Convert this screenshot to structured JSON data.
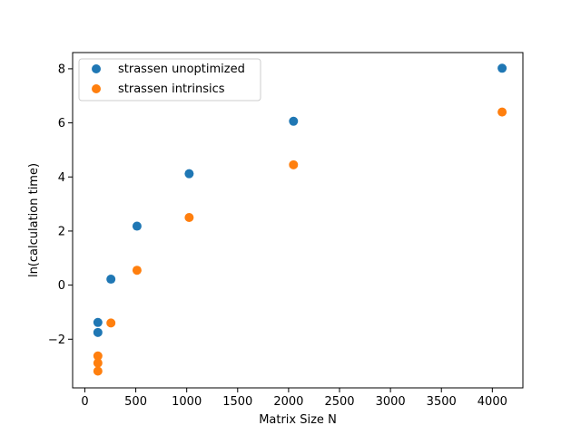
{
  "chart_data": {
    "type": "scatter",
    "title": "",
    "xlabel": "Matrix Size N",
    "ylabel": "ln(calculation time)",
    "xlim": [
      -120,
      4300
    ],
    "ylim": [
      -3.8,
      8.6
    ],
    "x_ticks": [
      0,
      500,
      1000,
      1500,
      2000,
      2500,
      3000,
      3500,
      4000
    ],
    "y_ticks": [
      -2,
      0,
      2,
      4,
      6,
      8
    ],
    "x_tick_labels": [
      "0",
      "500",
      "1000",
      "1500",
      "2000",
      "2500",
      "3000",
      "3500",
      "4000"
    ],
    "y_tick_labels": [
      "−2",
      "0",
      "2",
      "4",
      "6",
      "8"
    ],
    "grid": false,
    "legend_position": "upper-left",
    "series": [
      {
        "name": "strassen unoptimized",
        "color": "#1f77b4",
        "points": [
          {
            "x": 128,
            "y": -1.75
          },
          {
            "x": 128,
            "y": -1.38
          },
          {
            "x": 256,
            "y": 0.22
          },
          {
            "x": 512,
            "y": 2.18
          },
          {
            "x": 1024,
            "y": 4.12
          },
          {
            "x": 2048,
            "y": 6.06
          },
          {
            "x": 4096,
            "y": 8.02
          }
        ]
      },
      {
        "name": "strassen intrinsics",
        "color": "#ff7f0e",
        "points": [
          {
            "x": 128,
            "y": -3.18
          },
          {
            "x": 128,
            "y": -2.88
          },
          {
            "x": 128,
            "y": -2.62
          },
          {
            "x": 256,
            "y": -1.4
          },
          {
            "x": 512,
            "y": 0.55
          },
          {
            "x": 1024,
            "y": 2.5
          },
          {
            "x": 2048,
            "y": 4.45
          },
          {
            "x": 4096,
            "y": 6.4
          }
        ]
      }
    ]
  }
}
